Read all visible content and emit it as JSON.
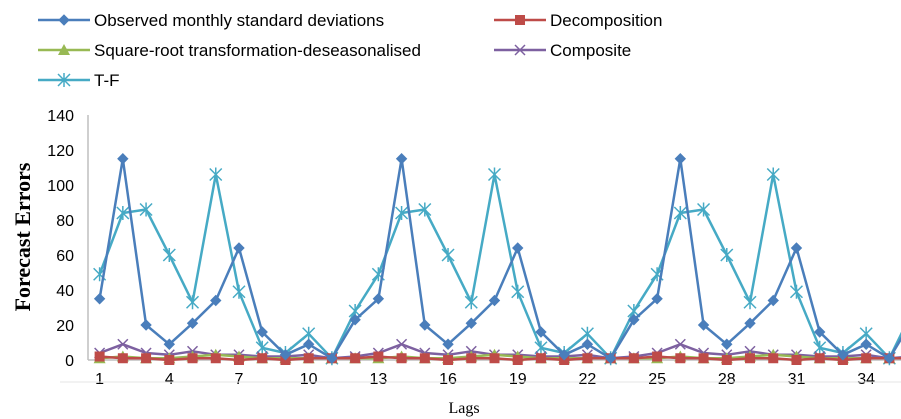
{
  "chart_data": {
    "type": "line",
    "title": "",
    "xlabel": "Lags",
    "ylabel": "Forecast Errors",
    "ylim": [
      0,
      140
    ],
    "yticks": [
      0,
      20,
      40,
      60,
      80,
      100,
      120,
      140
    ],
    "xlim": [
      1,
      36
    ],
    "xticks": [
      1,
      4,
      7,
      10,
      13,
      16,
      19,
      22,
      25,
      28,
      31,
      34
    ],
    "grid": false,
    "legend_position": "top",
    "x": [
      1,
      2,
      3,
      4,
      5,
      6,
      7,
      8,
      9,
      10,
      11,
      12,
      13,
      14,
      15,
      16,
      17,
      18,
      19,
      20,
      21,
      22,
      23,
      24,
      25,
      26,
      27,
      28,
      29,
      30,
      31,
      32,
      33,
      34,
      35,
      36
    ],
    "series": [
      {
        "name": "Observed monthly standard deviations",
        "color": "#4A7EBB",
        "marker": "diamond",
        "values": [
          35,
          115,
          20,
          9,
          21,
          34,
          64,
          16,
          3,
          9,
          1,
          23,
          35,
          115,
          20,
          9,
          21,
          34,
          64,
          16,
          3,
          9,
          1,
          23,
          35,
          115,
          20,
          9,
          21,
          34,
          64,
          16,
          3,
          9,
          1,
          23
        ]
      },
      {
        "name": "Decomposition",
        "color": "#BE4B48",
        "marker": "square",
        "values": [
          2,
          1,
          1,
          0,
          1,
          1,
          0,
          1,
          0,
          1,
          1,
          1,
          2,
          1,
          1,
          0,
          1,
          1,
          0,
          1,
          0,
          1,
          1,
          1,
          2,
          1,
          1,
          0,
          1,
          1,
          0,
          1,
          0,
          1,
          1,
          1
        ]
      },
      {
        "name": "Square-root transformation-deseasonalised",
        "color": "#98B954",
        "marker": "triangle",
        "values": [
          1,
          2,
          1,
          1,
          2,
          3,
          2,
          1,
          1,
          1,
          1,
          1,
          1,
          2,
          1,
          1,
          2,
          3,
          2,
          1,
          1,
          1,
          1,
          1,
          1,
          2,
          1,
          1,
          2,
          3,
          2,
          1,
          1,
          1,
          1,
          1
        ]
      },
      {
        "name": "Composite",
        "color": "#7D60A0",
        "marker": "x",
        "values": [
          4,
          9,
          4,
          3,
          5,
          3,
          3,
          2,
          2,
          3,
          1,
          2,
          4,
          9,
          4,
          3,
          5,
          3,
          3,
          2,
          2,
          3,
          1,
          2,
          4,
          9,
          4,
          3,
          5,
          3,
          3,
          2,
          2,
          3,
          1,
          2
        ]
      },
      {
        "name": "T-F",
        "color": "#46AAC5",
        "marker": "star",
        "values": [
          49,
          84,
          86,
          60,
          33,
          106,
          39,
          7,
          4,
          15,
          1,
          28,
          49,
          84,
          86,
          60,
          33,
          106,
          39,
          7,
          4,
          15,
          1,
          28,
          49,
          84,
          86,
          60,
          33,
          106,
          39,
          7,
          4,
          15,
          1,
          28
        ]
      }
    ]
  }
}
